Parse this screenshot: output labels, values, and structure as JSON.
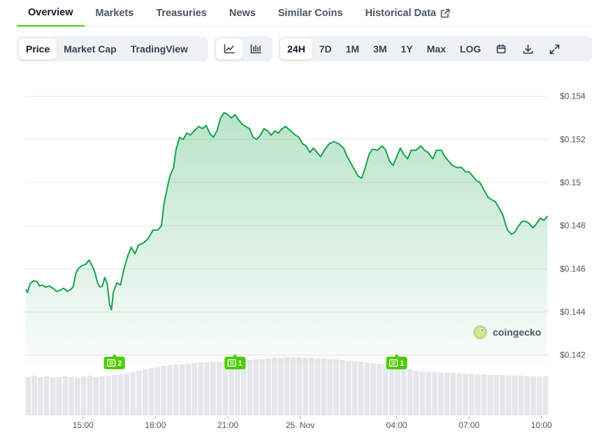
{
  "tabs": [
    {
      "label": "Overview",
      "active": true
    },
    {
      "label": "Markets",
      "active": false
    },
    {
      "label": "Treasuries",
      "active": false
    },
    {
      "label": "News",
      "active": false
    },
    {
      "label": "Similar Coins",
      "active": false
    },
    {
      "label": "Historical Data",
      "active": false,
      "external": true
    }
  ],
  "toolbar": {
    "chart_type": [
      {
        "label": "Price",
        "active": true
      },
      {
        "label": "Market Cap",
        "active": false
      },
      {
        "label": "TradingView",
        "active": false
      }
    ],
    "view_icons": [
      {
        "icon": "line-chart-icon",
        "active": true
      },
      {
        "icon": "candlestick-chart-icon",
        "active": false
      }
    ],
    "ranges": [
      {
        "label": "24H",
        "active": true
      },
      {
        "label": "7D",
        "active": false
      },
      {
        "label": "1M",
        "active": false
      },
      {
        "label": "3M",
        "active": false
      },
      {
        "label": "1Y",
        "active": false
      },
      {
        "label": "Max",
        "active": false
      },
      {
        "label": "LOG",
        "active": false
      }
    ],
    "tool_icons": [
      "calendar-icon",
      "download-icon",
      "fullscreen-icon"
    ]
  },
  "colors": {
    "accent": "#4bcc00",
    "line": "#16a34a",
    "volume": "#e5e7eb"
  },
  "watermark": {
    "text": "coingecko"
  },
  "chart_data": {
    "type": "area",
    "ylim": [
      0.1416,
      0.1549
    ],
    "yticks": [
      {
        "v": 0.154,
        "label": "$0.154"
      },
      {
        "v": 0.152,
        "label": "$0.152"
      },
      {
        "v": 0.15,
        "label": "$0.15"
      },
      {
        "v": 0.148,
        "label": "$0.148"
      },
      {
        "v": 0.146,
        "label": "$0.146"
      },
      {
        "v": 0.144,
        "label": "$0.144"
      },
      {
        "v": 0.142,
        "label": "$0.142"
      }
    ],
    "xrange": [
      12.6,
      34.3
    ],
    "xticks": [
      {
        "t": 15,
        "label": "15:00"
      },
      {
        "t": 18,
        "label": "18:00"
      },
      {
        "t": 21,
        "label": "21:00"
      },
      {
        "t": 24,
        "label": "25. Nov"
      },
      {
        "t": 28,
        "label": "04:00"
      },
      {
        "t": 31,
        "label": "07:00"
      },
      {
        "t": 34,
        "label": "10:00"
      }
    ],
    "price": [
      [
        12.62,
        0.14505
      ],
      [
        12.7,
        0.1449
      ],
      [
        12.8,
        0.1453
      ],
      [
        12.95,
        0.14545
      ],
      [
        13.1,
        0.1454
      ],
      [
        13.2,
        0.1452
      ],
      [
        13.3,
        0.14525
      ],
      [
        13.45,
        0.14515
      ],
      [
        13.6,
        0.1452
      ],
      [
        13.75,
        0.1451
      ],
      [
        13.9,
        0.14495
      ],
      [
        14.05,
        0.145
      ],
      [
        14.2,
        0.1451
      ],
      [
        14.35,
        0.14495
      ],
      [
        14.5,
        0.14505
      ],
      [
        14.6,
        0.1452
      ],
      [
        14.7,
        0.1458
      ],
      [
        14.8,
        0.146
      ],
      [
        14.95,
        0.14615
      ],
      [
        15.1,
        0.1462
      ],
      [
        15.25,
        0.1464
      ],
      [
        15.4,
        0.1461
      ],
      [
        15.5,
        0.1458
      ],
      [
        15.6,
        0.14535
      ],
      [
        15.7,
        0.14515
      ],
      [
        15.8,
        0.1452
      ],
      [
        15.9,
        0.1456
      ],
      [
        16.0,
        0.1453
      ],
      [
        16.1,
        0.14435
      ],
      [
        16.18,
        0.1441
      ],
      [
        16.25,
        0.1449
      ],
      [
        16.4,
        0.14535
      ],
      [
        16.55,
        0.14525
      ],
      [
        16.7,
        0.146
      ],
      [
        16.85,
        0.1466
      ],
      [
        17.0,
        0.147
      ],
      [
        17.15,
        0.1467
      ],
      [
        17.3,
        0.1471
      ],
      [
        17.5,
        0.1472
      ],
      [
        17.7,
        0.1474
      ],
      [
        17.9,
        0.1478
      ],
      [
        18.1,
        0.1478
      ],
      [
        18.25,
        0.148
      ],
      [
        18.35,
        0.149
      ],
      [
        18.5,
        0.1498
      ],
      [
        18.6,
        0.1503
      ],
      [
        18.75,
        0.1507
      ],
      [
        18.85,
        0.1515
      ],
      [
        19.0,
        0.1521
      ],
      [
        19.15,
        0.152
      ],
      [
        19.3,
        0.1523
      ],
      [
        19.45,
        0.1522
      ],
      [
        19.6,
        0.1524
      ],
      [
        19.8,
        0.1526
      ],
      [
        19.95,
        0.1525
      ],
      [
        20.1,
        0.15265
      ],
      [
        20.25,
        0.1523
      ],
      [
        20.4,
        0.1521
      ],
      [
        20.55,
        0.1524
      ],
      [
        20.7,
        0.153
      ],
      [
        20.85,
        0.15325
      ],
      [
        21.0,
        0.15315
      ],
      [
        21.15,
        0.153
      ],
      [
        21.3,
        0.15315
      ],
      [
        21.45,
        0.1529
      ],
      [
        21.6,
        0.1527
      ],
      [
        21.75,
        0.1526
      ],
      [
        21.9,
        0.1525
      ],
      [
        22.05,
        0.1521
      ],
      [
        22.2,
        0.152
      ],
      [
        22.35,
        0.1522
      ],
      [
        22.5,
        0.1525
      ],
      [
        22.65,
        0.1524
      ],
      [
        22.8,
        0.1522
      ],
      [
        22.95,
        0.1524
      ],
      [
        23.1,
        0.1523
      ],
      [
        23.25,
        0.1525
      ],
      [
        23.4,
        0.1526
      ],
      [
        23.6,
        0.1524
      ],
      [
        23.8,
        0.1522
      ],
      [
        23.95,
        0.1521
      ],
      [
        24.1,
        0.1518
      ],
      [
        24.25,
        0.1517
      ],
      [
        24.4,
        0.1514
      ],
      [
        24.55,
        0.1516
      ],
      [
        24.7,
        0.1514
      ],
      [
        24.85,
        0.1512
      ],
      [
        25.0,
        0.1515
      ],
      [
        25.2,
        0.1518
      ],
      [
        25.4,
        0.1519
      ],
      [
        25.6,
        0.1518
      ],
      [
        25.8,
        0.1516
      ],
      [
        25.95,
        0.1512
      ],
      [
        26.1,
        0.1509
      ],
      [
        26.25,
        0.1506
      ],
      [
        26.4,
        0.1503
      ],
      [
        26.55,
        0.1502
      ],
      [
        26.7,
        0.1507
      ],
      [
        26.85,
        0.1513
      ],
      [
        27.0,
        0.15155
      ],
      [
        27.2,
        0.1515
      ],
      [
        27.4,
        0.1517
      ],
      [
        27.55,
        0.1515
      ],
      [
        27.7,
        0.151
      ],
      [
        27.85,
        0.1508
      ],
      [
        28.0,
        0.1512
      ],
      [
        28.15,
        0.1516
      ],
      [
        28.3,
        0.1513
      ],
      [
        28.45,
        0.1511
      ],
      [
        28.6,
        0.1515
      ],
      [
        28.8,
        0.1515
      ],
      [
        29.0,
        0.1517
      ],
      [
        29.15,
        0.1515
      ],
      [
        29.3,
        0.1514
      ],
      [
        29.5,
        0.1511
      ],
      [
        29.65,
        0.1515
      ],
      [
        29.85,
        0.1515
      ],
      [
        30.0,
        0.1512
      ],
      [
        30.15,
        0.151
      ],
      [
        30.3,
        0.1508
      ],
      [
        30.5,
        0.1507
      ],
      [
        30.7,
        0.1507
      ],
      [
        30.85,
        0.1505
      ],
      [
        31.0,
        0.1505
      ],
      [
        31.15,
        0.1503
      ],
      [
        31.3,
        0.1501
      ],
      [
        31.45,
        0.15
      ],
      [
        31.6,
        0.1497
      ],
      [
        31.8,
        0.1493
      ],
      [
        31.95,
        0.1492
      ],
      [
        32.1,
        0.1491
      ],
      [
        32.25,
        0.1488
      ],
      [
        32.4,
        0.1485
      ],
      [
        32.5,
        0.1481
      ],
      [
        32.6,
        0.1478
      ],
      [
        32.75,
        0.1476
      ],
      [
        32.9,
        0.1477
      ],
      [
        33.05,
        0.148
      ],
      [
        33.2,
        0.1482
      ],
      [
        33.35,
        0.1482
      ],
      [
        33.5,
        0.1481
      ],
      [
        33.65,
        0.1479
      ],
      [
        33.8,
        0.1481
      ],
      [
        33.95,
        0.14835
      ],
      [
        34.1,
        0.14825
      ],
      [
        34.25,
        0.14845
      ]
    ],
    "volume_range": [
      12.6,
      34.3
    ],
    "volume_rel": [
      0.62,
      0.64,
      0.62,
      0.63,
      0.61,
      0.62,
      0.63,
      0.62,
      0.61,
      0.63,
      0.64,
      0.62,
      0.63,
      0.64,
      0.65,
      0.66,
      0.68,
      0.7,
      0.72,
      0.74,
      0.76,
      0.78,
      0.8,
      0.81,
      0.82,
      0.82,
      0.83,
      0.84,
      0.85,
      0.85,
      0.86,
      0.86,
      0.87,
      0.87,
      0.88,
      0.88,
      0.89,
      0.9,
      0.9,
      0.91,
      0.92,
      0.92,
      0.93,
      0.93,
      0.93,
      0.92,
      0.92,
      0.91,
      0.91,
      0.9,
      0.9,
      0.89,
      0.88,
      0.87,
      0.86,
      0.85,
      0.84,
      0.83,
      0.82,
      0.8,
      0.78,
      0.76,
      0.74,
      0.72,
      0.7,
      0.7,
      0.7,
      0.69,
      0.69,
      0.68,
      0.68,
      0.67,
      0.67,
      0.66,
      0.66,
      0.65,
      0.65,
      0.65,
      0.64,
      0.64,
      0.64,
      0.63,
      0.63,
      0.63,
      0.63
    ],
    "events": [
      {
        "t": 16.3,
        "label": "2"
      },
      {
        "t": 21.3,
        "label": "1"
      },
      {
        "t": 28.0,
        "label": "1"
      }
    ]
  }
}
